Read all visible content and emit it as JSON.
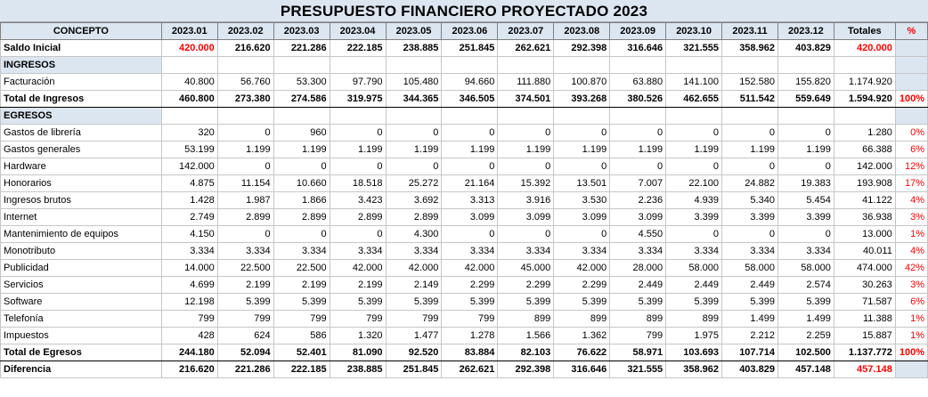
{
  "title": "PRESUPUESTO  FINANCIERO  PROYECTADO 2023",
  "header": {
    "concepto": "CONCEPTO",
    "months": [
      "2023.01",
      "2023.02",
      "2023.03",
      "2023.04",
      "2023.05",
      "2023.06",
      "2023.07",
      "2023.08",
      "2023.09",
      "2023.10",
      "2023.11",
      "2023.12"
    ],
    "totales": "Totales",
    "pct": "%"
  },
  "saldo_inicial": {
    "label": "Saldo Inicial",
    "values": [
      "420.000",
      "216.620",
      "221.286",
      "222.185",
      "238.885",
      "251.845",
      "262.621",
      "292.398",
      "316.646",
      "321.555",
      "358.962",
      "403.829"
    ],
    "total": "420.000"
  },
  "ingresos": {
    "section_label": "INGRESOS",
    "rows": [
      {
        "label": "Facturación",
        "values": [
          "40.800",
          "56.760",
          "53.300",
          "97.790",
          "105.480",
          "94.660",
          "111.880",
          "100.870",
          "63.880",
          "141.100",
          "152.580",
          "155.820"
        ],
        "total": "1.174.920",
        "pct": ""
      }
    ],
    "total_row": {
      "label": "Total de Ingresos",
      "values": [
        "460.800",
        "273.380",
        "274.586",
        "319.975",
        "344.365",
        "346.505",
        "374.501",
        "393.268",
        "380.526",
        "462.655",
        "511.542",
        "559.649"
      ],
      "total": "1.594.920",
      "pct": "100%"
    }
  },
  "egresos": {
    "section_label": "EGRESOS",
    "rows": [
      {
        "label": "Gastos de librería",
        "values": [
          "320",
          "0",
          "960",
          "0",
          "0",
          "0",
          "0",
          "0",
          "0",
          "0",
          "0",
          "0"
        ],
        "total": "1.280",
        "pct": "0%"
      },
      {
        "label": "Gastos generales",
        "values": [
          "53.199",
          "1.199",
          "1.199",
          "1.199",
          "1.199",
          "1.199",
          "1.199",
          "1.199",
          "1.199",
          "1.199",
          "1.199",
          "1.199"
        ],
        "total": "66.388",
        "pct": "6%"
      },
      {
        "label": "Hardware",
        "values": [
          "142.000",
          "0",
          "0",
          "0",
          "0",
          "0",
          "0",
          "0",
          "0",
          "0",
          "0",
          "0"
        ],
        "total": "142.000",
        "pct": "12%"
      },
      {
        "label": "Honorarios",
        "values": [
          "4.875",
          "11.154",
          "10.660",
          "18.518",
          "25.272",
          "21.164",
          "15.392",
          "13.501",
          "7.007",
          "22.100",
          "24.882",
          "19.383"
        ],
        "total": "193.908",
        "pct": "17%"
      },
      {
        "label": "Ingresos brutos",
        "values": [
          "1.428",
          "1.987",
          "1.866",
          "3.423",
          "3.692",
          "3.313",
          "3.916",
          "3.530",
          "2.236",
          "4.939",
          "5.340",
          "5.454"
        ],
        "total": "41.122",
        "pct": "4%"
      },
      {
        "label": "Internet",
        "values": [
          "2.749",
          "2.899",
          "2.899",
          "2.899",
          "2.899",
          "3.099",
          "3.099",
          "3.099",
          "3.099",
          "3.399",
          "3.399",
          "3.399"
        ],
        "total": "36.938",
        "pct": "3%"
      },
      {
        "label": "Mantenimiento de equipos",
        "values": [
          "4.150",
          "0",
          "0",
          "0",
          "4.300",
          "0",
          "0",
          "0",
          "4.550",
          "0",
          "0",
          "0"
        ],
        "total": "13.000",
        "pct": "1%"
      },
      {
        "label": "Monotributo",
        "values": [
          "3.334",
          "3.334",
          "3.334",
          "3.334",
          "3.334",
          "3.334",
          "3.334",
          "3.334",
          "3.334",
          "3.334",
          "3.334",
          "3.334"
        ],
        "total": "40.011",
        "pct": "4%"
      },
      {
        "label": "Publicidad",
        "values": [
          "14.000",
          "22.500",
          "22.500",
          "42.000",
          "42.000",
          "42.000",
          "45.000",
          "42.000",
          "28.000",
          "58.000",
          "58.000",
          "58.000"
        ],
        "total": "474.000",
        "pct": "42%"
      },
      {
        "label": "Servicios",
        "values": [
          "4.699",
          "2.199",
          "2.199",
          "2.199",
          "2.149",
          "2.299",
          "2.299",
          "2.299",
          "2.449",
          "2.449",
          "2.449",
          "2.574"
        ],
        "total": "30.263",
        "pct": "3%"
      },
      {
        "label": "Software",
        "values": [
          "12.198",
          "5.399",
          "5.399",
          "5.399",
          "5.399",
          "5.399",
          "5.399",
          "5.399",
          "5.399",
          "5.399",
          "5.399",
          "5.399"
        ],
        "total": "71.587",
        "pct": "6%"
      },
      {
        "label": "Telefonía",
        "values": [
          "799",
          "799",
          "799",
          "799",
          "799",
          "799",
          "899",
          "899",
          "899",
          "899",
          "1.499",
          "1.499"
        ],
        "total": "11.388",
        "pct": "1%"
      },
      {
        "label": "Impuestos",
        "values": [
          "428",
          "624",
          "586",
          "1.320",
          "1.477",
          "1.278",
          "1.566",
          "1.362",
          "799",
          "1.975",
          "2.212",
          "2.259"
        ],
        "total": "15.887",
        "pct": "1%"
      }
    ],
    "total_row": {
      "label": "Total de Egresos",
      "values": [
        "244.180",
        "52.094",
        "52.401",
        "81.090",
        "92.520",
        "83.884",
        "82.103",
        "76.622",
        "58.971",
        "103.693",
        "107.714",
        "102.500"
      ],
      "total": "1.137.772",
      "pct": "100%"
    }
  },
  "diferencia": {
    "label": "Diferencia",
    "values": [
      "216.620",
      "221.286",
      "222.185",
      "238.885",
      "251.845",
      "262.621",
      "292.398",
      "316.646",
      "321.555",
      "358.962",
      "403.829",
      "457.148"
    ],
    "total": "457.148"
  }
}
